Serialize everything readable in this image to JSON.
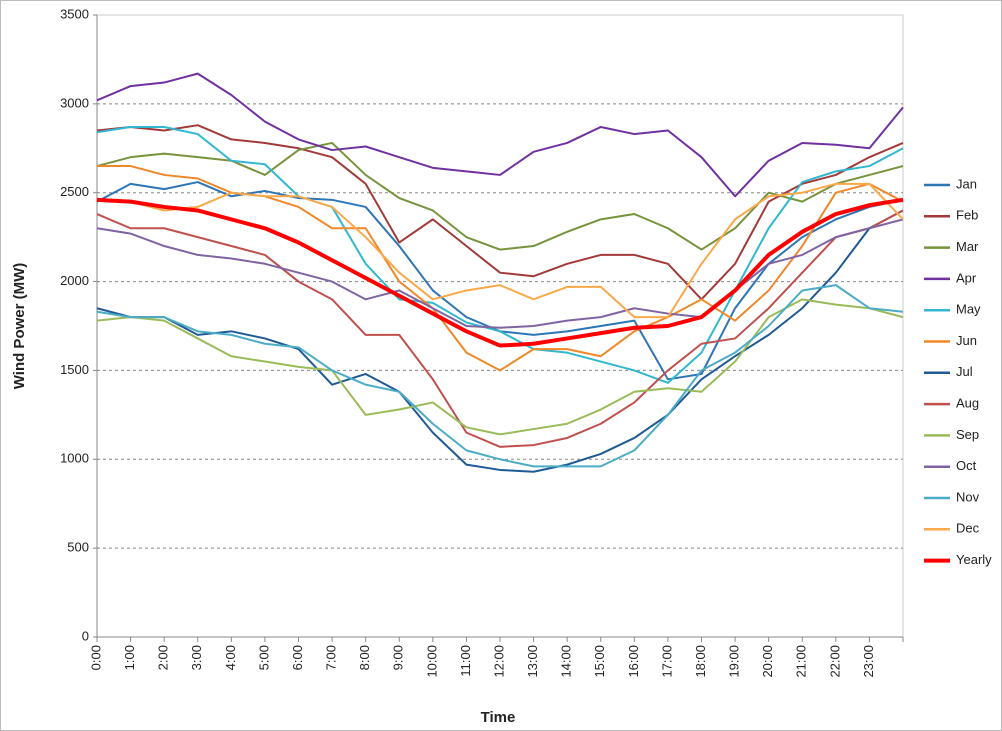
{
  "chart_data": {
    "type": "line",
    "y_label": "Wind Power (MW)",
    "x_label": "Time",
    "categories": [
      "0:00",
      "1:00",
      "2:00",
      "3:00",
      "4:00",
      "5:00",
      "6:00",
      "7:00",
      "8:00",
      "9:00",
      "10:00",
      "11:00",
      "12:00",
      "13:00",
      "14:00",
      "15:00",
      "16:00",
      "17:00",
      "18:00",
      "19:00",
      "20:00",
      "21:00",
      "22:00",
      "23:00",
      null
    ],
    "ylim": [
      0,
      3500
    ],
    "yticks": [
      0,
      500,
      1000,
      1500,
      2000,
      2500,
      3000,
      3500
    ],
    "grid": true,
    "legend": "right",
    "series": [
      {
        "name": "Jan",
        "color": "#2e75b6",
        "values": [
          2450,
          2550,
          2520,
          2560,
          2480,
          2510,
          2470,
          2460,
          2420,
          2200,
          1950,
          1800,
          1720,
          1700,
          1720,
          1750,
          1780,
          1450,
          1480,
          1850,
          2100,
          2250,
          2350,
          2420,
          2460
        ]
      },
      {
        "name": "Feb",
        "color": "#a33a3a",
        "values": [
          2850,
          2870,
          2850,
          2880,
          2800,
          2780,
          2750,
          2700,
          2550,
          2220,
          2350,
          2200,
          2050,
          2030,
          2100,
          2150,
          2150,
          2100,
          1900,
          2100,
          2450,
          2550,
          2600,
          2700,
          2780
        ]
      },
      {
        "name": "Mar",
        "color": "#77933c",
        "values": [
          2650,
          2700,
          2720,
          2700,
          2680,
          2600,
          2740,
          2780,
          2600,
          2470,
          2400,
          2250,
          2180,
          2200,
          2280,
          2350,
          2380,
          2300,
          2180,
          2300,
          2500,
          2450,
          2550,
          2600,
          2650
        ]
      },
      {
        "name": "Apr",
        "color": "#7030a0",
        "values": [
          3020,
          3100,
          3120,
          3170,
          3050,
          2900,
          2800,
          2740,
          2760,
          2700,
          2640,
          2620,
          2600,
          2730,
          2780,
          2870,
          2830,
          2850,
          2700,
          2480,
          2680,
          2780,
          2770,
          2750,
          2980
        ]
      },
      {
        "name": "May",
        "color": "#31b8d0",
        "values": [
          2840,
          2870,
          2870,
          2830,
          2680,
          2660,
          2480,
          2420,
          2100,
          1900,
          1880,
          1770,
          1720,
          1620,
          1600,
          1550,
          1500,
          1430,
          1600,
          1950,
          2300,
          2560,
          2620,
          2650,
          2750
        ]
      },
      {
        "name": "Jun",
        "color": "#f0882a",
        "values": [
          2650,
          2650,
          2600,
          2580,
          2500,
          2480,
          2420,
          2300,
          2300,
          2000,
          1850,
          1600,
          1500,
          1620,
          1620,
          1580,
          1720,
          1800,
          1900,
          1780,
          1950,
          2200,
          2500,
          2550,
          2450
        ]
      },
      {
        "name": "Jul",
        "color": "#1f5a96",
        "values": [
          1850,
          1800,
          1800,
          1700,
          1720,
          1680,
          1620,
          1420,
          1480,
          1380,
          1150,
          970,
          940,
          930,
          970,
          1030,
          1120,
          1250,
          1450,
          1580,
          1700,
          1850,
          2050,
          2300,
          2400
        ]
      },
      {
        "name": "Aug",
        "color": "#c0504d",
        "values": [
          2380,
          2300,
          2300,
          2250,
          2200,
          2150,
          2000,
          1900,
          1700,
          1700,
          1450,
          1150,
          1070,
          1080,
          1120,
          1200,
          1320,
          1500,
          1650,
          1680,
          1850,
          2050,
          2250,
          2300,
          2400
        ]
      },
      {
        "name": "Sep",
        "color": "#9bbb59",
        "values": [
          1780,
          1800,
          1780,
          1680,
          1580,
          1550,
          1520,
          1500,
          1250,
          1280,
          1320,
          1180,
          1140,
          1170,
          1200,
          1280,
          1380,
          1400,
          1380,
          1550,
          1800,
          1900,
          1870,
          1850,
          1800
        ]
      },
      {
        "name": "Oct",
        "color": "#8064a2",
        "values": [
          2300,
          2270,
          2200,
          2150,
          2130,
          2100,
          2050,
          2000,
          1900,
          1950,
          1850,
          1750,
          1740,
          1750,
          1780,
          1800,
          1850,
          1820,
          1800,
          1950,
          2100,
          2150,
          2250,
          2300,
          2350
        ]
      },
      {
        "name": "Nov",
        "color": "#4bacc6",
        "values": [
          1830,
          1800,
          1800,
          1720,
          1700,
          1650,
          1630,
          1500,
          1420,
          1380,
          1200,
          1050,
          1000,
          960,
          960,
          960,
          1050,
          1250,
          1500,
          1600,
          1750,
          1950,
          1980,
          1850,
          1830
        ]
      },
      {
        "name": "Dec",
        "color": "#f9a94a",
        "values": [
          2460,
          2450,
          2400,
          2420,
          2500,
          2480,
          2480,
          2420,
          2250,
          2050,
          1900,
          1950,
          1980,
          1900,
          1970,
          1970,
          1800,
          1800,
          2100,
          2350,
          2480,
          2500,
          2550,
          2550,
          2350
        ]
      },
      {
        "name": "Yearly",
        "color": "#ff0000",
        "width": 4,
        "values": [
          2460,
          2450,
          2420,
          2400,
          2350,
          2300,
          2220,
          2120,
          2020,
          1920,
          1820,
          1720,
          1640,
          1650,
          1680,
          1710,
          1740,
          1750,
          1800,
          1950,
          2150,
          2280,
          2380,
          2430,
          2460
        ]
      }
    ]
  }
}
